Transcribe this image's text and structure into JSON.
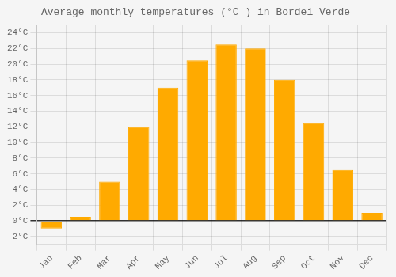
{
  "chart_data": {
    "type": "bar",
    "title": "Average monthly temperatures (°C ) in Bordei Verde",
    "categories": [
      "Jan",
      "Feb",
      "Mar",
      "Apr",
      "May",
      "Jun",
      "Jul",
      "Aug",
      "Sep",
      "Oct",
      "Nov",
      "Dec"
    ],
    "values": [
      -1.0,
      0.5,
      5.0,
      12.0,
      17.0,
      20.5,
      22.5,
      22.0,
      18.0,
      12.5,
      6.5,
      1.0
    ],
    "color": "#FFAA00",
    "ylim": [
      -3,
      25
    ],
    "yticks": [
      {
        "value": -2,
        "label": "-2°C"
      },
      {
        "value": 0,
        "label": "0°C"
      },
      {
        "value": 2,
        "label": "2°C"
      },
      {
        "value": 4,
        "label": "4°C"
      },
      {
        "value": 6,
        "label": "6°C"
      },
      {
        "value": 8,
        "label": "8°C"
      },
      {
        "value": 10,
        "label": "10°C"
      },
      {
        "value": 12,
        "label": "12°C"
      },
      {
        "value": 14,
        "label": "14°C"
      },
      {
        "value": 16,
        "label": "16°C"
      },
      {
        "value": 18,
        "label": "18°C"
      },
      {
        "value": 20,
        "label": "20°C"
      },
      {
        "value": 22,
        "label": "22°C"
      },
      {
        "value": 24,
        "label": "24°C"
      }
    ],
    "grid": true
  }
}
